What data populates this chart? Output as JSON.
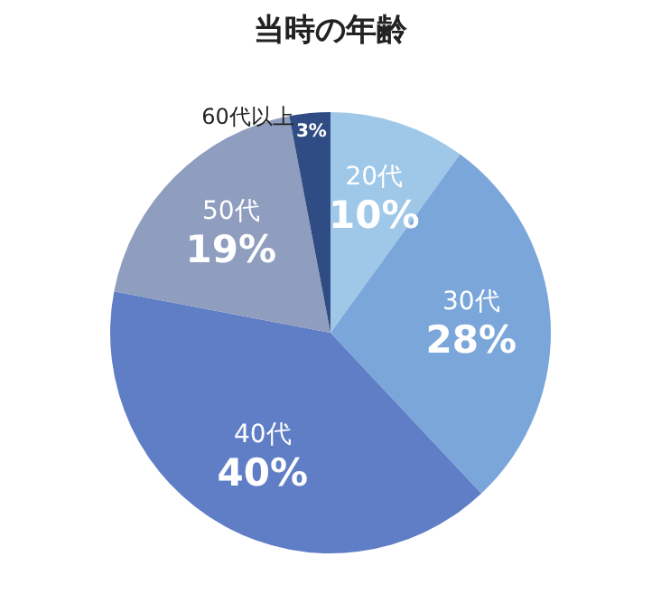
{
  "chart_data": {
    "type": "pie",
    "title": "当時の年齢",
    "categories": [
      "20代",
      "30代",
      "40代",
      "50代",
      "60代以上"
    ],
    "values": [
      10,
      28,
      40,
      19,
      3
    ],
    "value_labels": [
      "10%",
      "28%",
      "40%",
      "19%",
      "3%"
    ],
    "colors": [
      "#9fc8e8",
      "#7ba6da",
      "#5f7ec6",
      "#8f9dbe",
      "#2f4d84"
    ],
    "legend": false
  }
}
